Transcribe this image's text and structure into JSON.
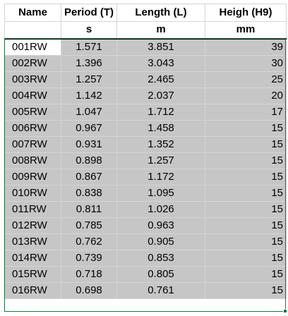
{
  "table": {
    "headers": [
      "Name",
      "Period (T)",
      "Length (L)",
      "Heigh (H9)"
    ],
    "units": [
      "",
      "s",
      "m",
      "mm"
    ],
    "rows": [
      [
        "001RW",
        "1.571",
        "3.851",
        "39"
      ],
      [
        "002RW",
        "1.396",
        "3.043",
        "30"
      ],
      [
        "003RW",
        "1.257",
        "2.465",
        "25"
      ],
      [
        "004RW",
        "1.142",
        "2.037",
        "20"
      ],
      [
        "005RW",
        "1.047",
        "1.712",
        "17"
      ],
      [
        "006RW",
        "0.967",
        "1.458",
        "15"
      ],
      [
        "007RW",
        "0.931",
        "1.352",
        "15"
      ],
      [
        "008RW",
        "0.898",
        "1.257",
        "15"
      ],
      [
        "009RW",
        "0.867",
        "1.172",
        "15"
      ],
      [
        "010RW",
        "0.838",
        "1.095",
        "15"
      ],
      [
        "011RW",
        "0.811",
        "1.026",
        "15"
      ],
      [
        "012RW",
        "0.785",
        "0.963",
        "15"
      ],
      [
        "013RW",
        "0.762",
        "0.905",
        "15"
      ],
      [
        "014RW",
        "0.739",
        "0.853",
        "15"
      ],
      [
        "015RW",
        "0.718",
        "0.805",
        "15"
      ],
      [
        "016RW",
        "0.698",
        "0.761",
        "15"
      ]
    ]
  },
  "colors": {
    "selection_fill": "#c6c6c6",
    "selection_border": "#217346",
    "gridline": "#d4d4d4"
  }
}
